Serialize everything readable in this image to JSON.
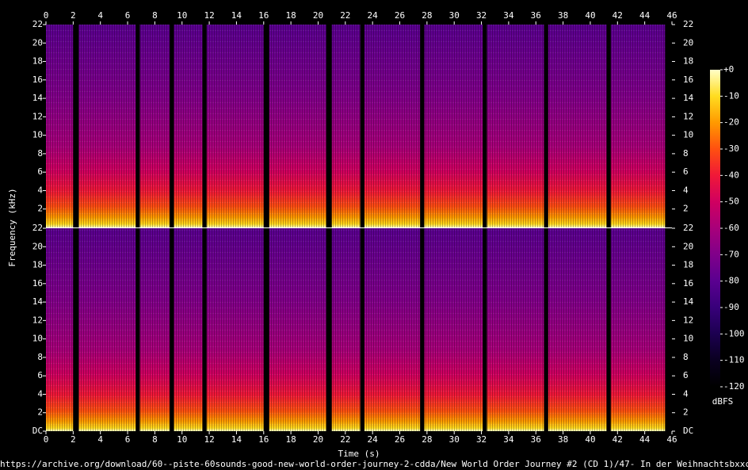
{
  "chart_data": {
    "type": "spectrogram",
    "xlabel": "Time (s)",
    "ylabel": "Frequency (kHz)",
    "xlim": [
      0,
      46
    ],
    "xticks": [
      0,
      2,
      4,
      6,
      8,
      10,
      12,
      14,
      16,
      18,
      20,
      22,
      24,
      26,
      28,
      30,
      32,
      34,
      36,
      38,
      40,
      42,
      44,
      46
    ],
    "ylim": [
      0,
      22
    ],
    "channels": [
      {
        "yticks": [
          2,
          4,
          6,
          8,
          10,
          12,
          14,
          16,
          18,
          20,
          22
        ]
      },
      {
        "yticks": [
          {
            "value": 0,
            "label": "DC"
          },
          2,
          4,
          6,
          8,
          10,
          12,
          14,
          16,
          18,
          20,
          22
        ]
      }
    ],
    "silences": [
      [
        2.0,
        2.4
      ],
      [
        6.6,
        6.9
      ],
      [
        9.1,
        9.4
      ],
      [
        11.5,
        11.8
      ],
      [
        16.0,
        16.4
      ],
      [
        20.6,
        21.0
      ],
      [
        23.1,
        23.4
      ],
      [
        27.5,
        27.8
      ],
      [
        32.1,
        32.4
      ],
      [
        36.6,
        36.9
      ],
      [
        41.2,
        41.5
      ],
      [
        45.5,
        46
      ]
    ],
    "colorbar": {
      "label": "dBFS",
      "lim": [
        -120,
        0
      ],
      "ticks": [
        {
          "value": 0,
          "label": "+0"
        },
        -10,
        -20,
        -30,
        -40,
        -50,
        -60,
        -70,
        -80,
        -90,
        -100,
        -110,
        -120
      ]
    },
    "colormap": [
      "#000000",
      "#0a0020",
      "#1c0050",
      "#38007a",
      "#5a0090",
      "#80008a",
      "#a8007a",
      "#d00060",
      "#f01838",
      "#ff5010",
      "#ff9a00",
      "#ffdc20",
      "#ffffc8"
    ],
    "file": "https://archive.org/download/60--piste-60sounds-good-new-world-order-journey-2-cdda/New World Order Journey #2 (CD 1)/47- In der Weihnachtsbxxckerei - A.wav"
  }
}
